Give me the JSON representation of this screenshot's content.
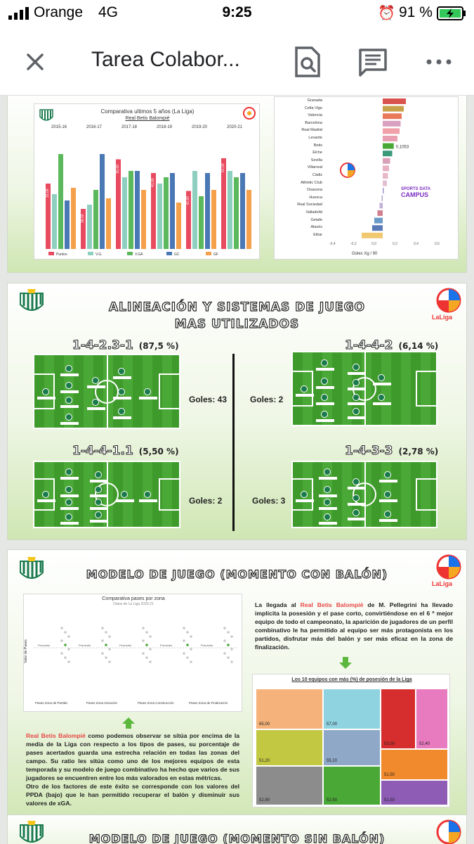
{
  "status": {
    "carrier": "Orange",
    "network": "4G",
    "time": "9:25",
    "battery": "91 %"
  },
  "appbar": {
    "title": "Tarea Colabor..."
  },
  "slide1": {
    "chart_title": "Comparativa ultimos 5 años (La Liga)",
    "chart_subtitle": "Real Betis Balompié",
    "seasons": [
      "2015-16",
      "2016-17",
      "2017-18",
      "2018-19",
      "2019-20",
      "2020-21"
    ],
    "legend": [
      "Puntos",
      "V.G.",
      "V.GA",
      "GC",
      "GF"
    ],
    "bar_labels": [
      "33,00",
      "39,00",
      "50,00",
      "41,00",
      "42,00",
      "61,00"
    ],
    "teams": [
      "Granada",
      "Celta Vigo",
      "Valencia",
      "Barcelona",
      "Real Madrid",
      "Levante",
      "Betis",
      "Elche",
      "Sevilla",
      "Villarreal",
      "Cádiz",
      "Athletic Club",
      "Osasuna",
      "Huesca",
      "Real Sociedad",
      "Valladolid",
      "Getafe",
      "Alavés",
      "Eibar"
    ],
    "betis_value": "0,1053",
    "xaxis_ticks": [
      "-0,4",
      "-0,2",
      "0,0",
      "0,2",
      "0,4",
      "0,6"
    ],
    "xaxis_label": "Goles Xg / 90",
    "sports_data": "SPORTS DATA",
    "campus": "CAMPUS"
  },
  "slide2": {
    "title_line1": "ALINEACIÓN Y SISTEMAS DE JUEGO",
    "title_line2": "MAS UTILIZADOS",
    "liga": "LaLiga",
    "formations": [
      {
        "name": "1-4-2.3-1",
        "pct": "(87,5 %)",
        "goles": "Goles: 43"
      },
      {
        "name": "1-4-4-2",
        "pct": "(6,14 %)",
        "goles": "Goles: 2"
      },
      {
        "name": "1-4-4-1.1",
        "pct": "(5,50 %)",
        "goles": "Goles: 2"
      },
      {
        "name": "1-4-3-3",
        "pct": "(2,78 %)",
        "goles": "Goles: 3"
      }
    ]
  },
  "slide3": {
    "title": "MODELO DE JUEGO (MOMENTO CON BALÓN)",
    "liga": "LaLiga",
    "scatter_title": "Comparativa pases por zona",
    "scatter_sub": "Datos de La Liga 2020-21",
    "scatter_axis": "Valor de Pases",
    "scatter_markers": [
      "Promedio",
      "Promedio",
      "Promedio",
      "Promedio",
      "Promedio"
    ],
    "scatter_xlabels": [
      "Pases Zona de Partida",
      "Pases Zona Iniciación",
      "Pases Zona Construcción",
      "Pases Zona de Finalización"
    ],
    "para_right_pre": "La llegada al ",
    "para_right_hl": "Real Betis Balompié",
    "para_right_post": " de M. Pellegrini ha llevado implícita la posesión y el pase corto, convirtiéndose en el 6 º mejor equipo de todo el campeonato, la aparición de jugadores de un perfil combinativo le ha permitido al equipo ser más protagonista en los partidos, disfrutar más del balón y ser más eficaz en la zona de finalización.",
    "para_left_hl": "Real Betis Balompié",
    "para_left_post": " como podemos observar se sitúa por encima de la media de la Liga con respecto a los tipos de pases, su porcentaje de pases acertados guarda una estrecha relación en todas las zonas del campo. Su ratio les sitúa como uno de los mejores equipos de esta temporada y su modelo de juego combinativo ha hecho que varios de sus jugadores se encuentren entre los más valorados en estas métricas.",
    "para_left_2": "Otro de los factores de este éxito se corresponde con los valores del PPDA (bajo) que le han permitido recuperar el balón y disminuir sus valores de xGA.",
    "treemap_title": "Los 10 equipos con más (%) de posesión de la Liga",
    "treemap_values": [
      "65,00",
      "57,00",
      "53,00",
      "52,40",
      "51,20",
      "55,10",
      "52,90",
      "52,90",
      "51,50",
      "51,50"
    ]
  },
  "slide4": {
    "title": "MODELO DE JUEGO (MOMENTO SIN BALÓN)"
  },
  "colors": {
    "accent_green": "#5cb83c",
    "betis_green": "#1a7a4c",
    "highlight_red": "#e84545"
  }
}
